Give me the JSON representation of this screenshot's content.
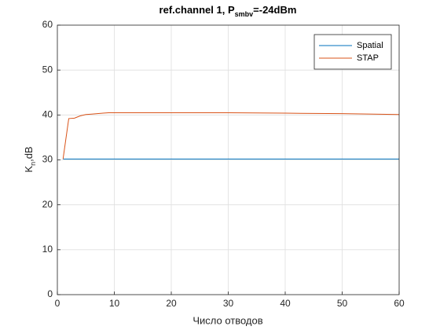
{
  "chart_data": {
    "type": "line",
    "title": [
      "ref.channel 1, P",
      "smbv",
      "=-24dBm"
    ],
    "xlabel": "Число отводов",
    "ylabel": [
      "K",
      "n",
      ",dB"
    ],
    "x": [
      1,
      2,
      3,
      4,
      5,
      6,
      7,
      8,
      9,
      10,
      20,
      30,
      40,
      50,
      60
    ],
    "series": [
      {
        "name": "Spatial",
        "color": "#0072bd",
        "values": [
          30.2,
          30.2,
          30.2,
          30.2,
          30.2,
          30.2,
          30.2,
          30.2,
          30.2,
          30.2,
          30.2,
          30.2,
          30.2,
          30.2,
          30.2
        ]
      },
      {
        "name": "STAP",
        "color": "#d95319",
        "values": [
          30.2,
          39.2,
          39.3,
          39.8,
          40.1,
          40.2,
          40.3,
          40.4,
          40.5,
          40.5,
          40.5,
          40.5,
          40.4,
          40.3,
          40.1
        ]
      }
    ],
    "xlim": [
      0,
      60
    ],
    "xticks": [
      0,
      10,
      20,
      30,
      40,
      50,
      60
    ],
    "ylim": [
      0,
      60
    ],
    "yticks": [
      0,
      10,
      20,
      30,
      40,
      50,
      60
    ],
    "grid": true,
    "legend": "upper-right"
  }
}
